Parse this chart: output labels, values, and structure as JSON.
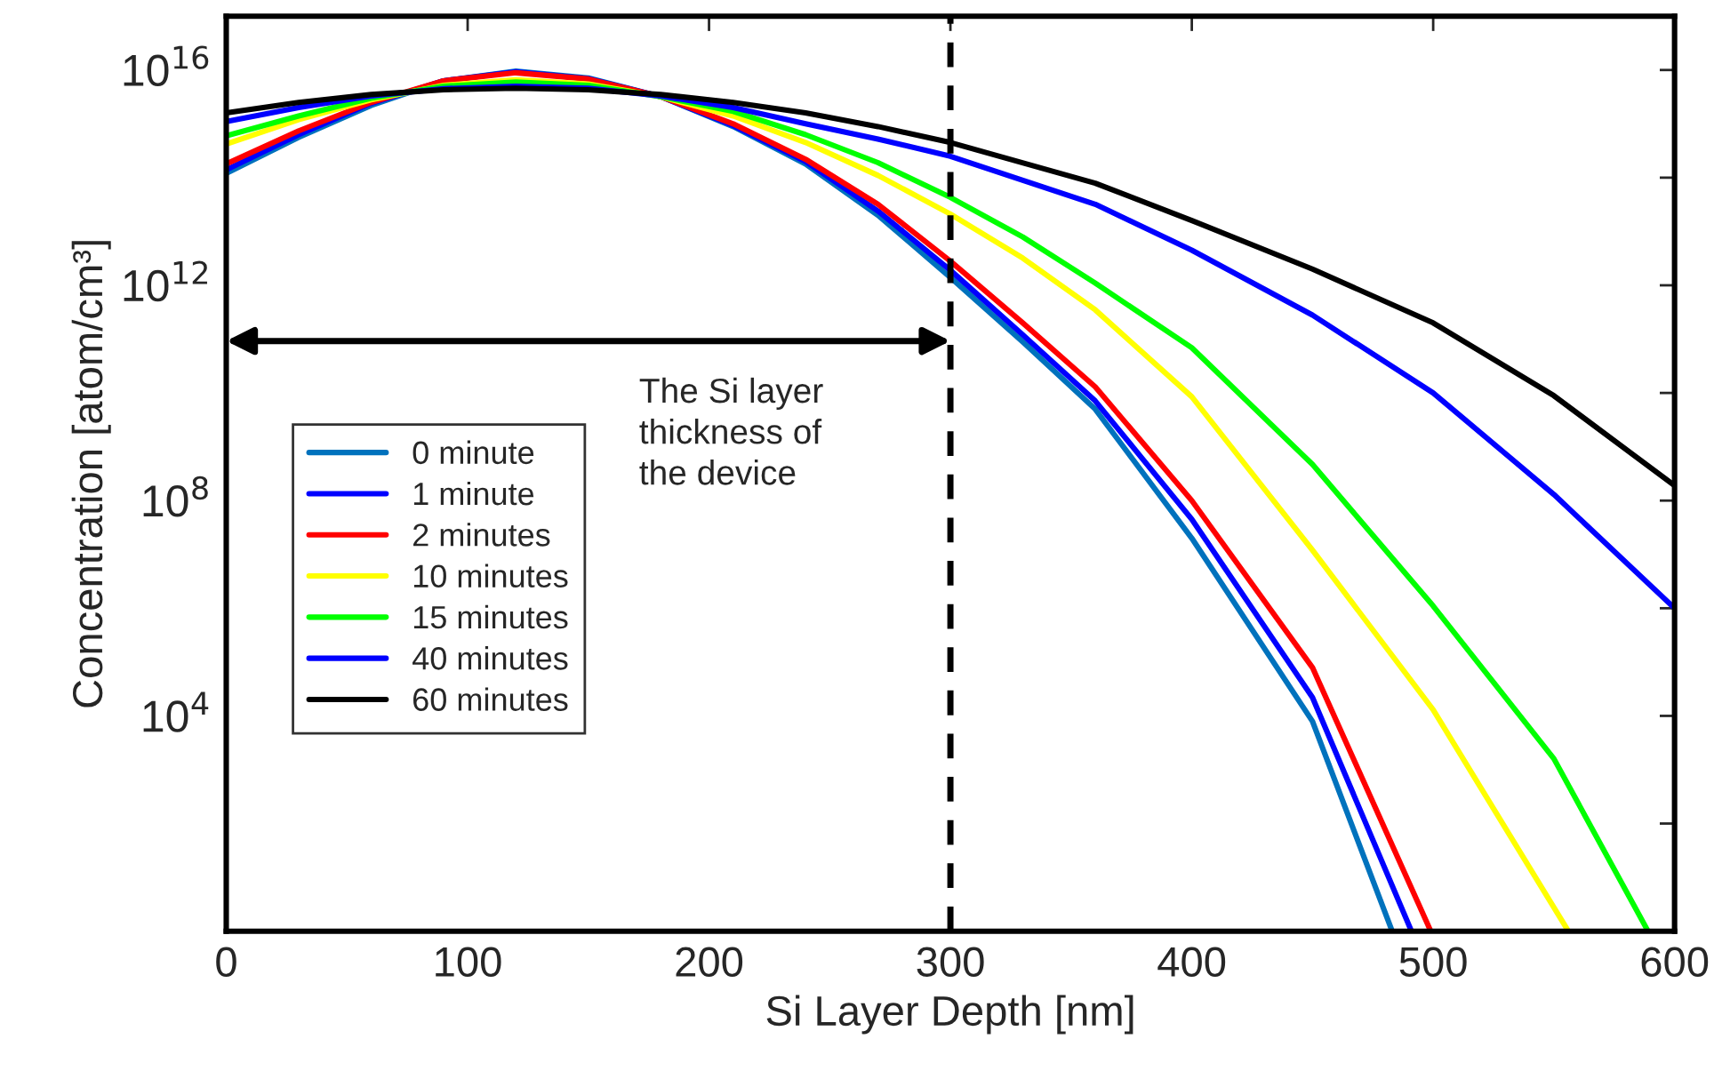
{
  "chart_data": {
    "type": "line",
    "xlabel": "Si Layer Depth [nm]",
    "ylabel": "Concentration [atom/cm³]",
    "log": "y",
    "xlim": [
      0,
      600
    ],
    "ylim": [
      1,
      1e+17
    ],
    "grid": false,
    "legend": "center left",
    "line_style": "solid",
    "marker": "none",
    "xticks": [
      0,
      100,
      200,
      300,
      400,
      500,
      600
    ],
    "yticks": [
      {
        "value": 1,
        "label": null
      },
      {
        "value": 100,
        "label": null
      },
      {
        "value": 10000,
        "label": "10$^{4}$"
      },
      {
        "value": 1000000.0,
        "label": null
      },
      {
        "value": 100000000.0,
        "label": "10$^{8}$"
      },
      {
        "value": 10000000000.0,
        "label": null
      },
      {
        "value": 1000000000000.0,
        "label": "10$^{12}$"
      },
      {
        "value": 100000000000000.0,
        "label": null
      },
      {
        "value": 1e+16,
        "label": "10$^{16}$"
      }
    ],
    "series": [
      {
        "name": "0 minute",
        "color": "#0072bd",
        "x": [
          0,
          30,
          60,
          90,
          120,
          150,
          180,
          210,
          240,
          270,
          300,
          330,
          360,
          400,
          450,
          483
        ],
        "values": [
          120000000000000.0,
          560000000000000.0,
          2200000000000000.0,
          6300000000000000.0,
          9500000000000000.0,
          7100000000000000.0,
          3200000000000000.0,
          890000000000000.0,
          180000000000000.0,
          20000000000000.0,
          1400000000000.0,
          89000000000.0,
          5000000000.0,
          20000000.0,
          7900.0,
          1
        ]
      },
      {
        "name": "1 minute",
        "color": "#0000ff",
        "x": [
          0,
          30,
          60,
          90,
          120,
          150,
          180,
          210,
          240,
          270,
          300,
          330,
          360,
          400,
          450,
          491
        ],
        "values": [
          140000000000000.0,
          630000000000000.0,
          2400000000000000.0,
          6300000000000000.0,
          9300000000000000.0,
          6900000000000000.0,
          3200000000000000.0,
          930000000000000.0,
          200000000000000.0,
          24000000000000.0,
          1900000000000.0,
          120000000000.0,
          7100000000.0,
          45000000.0,
          22000.0,
          1
        ]
      },
      {
        "name": "2 minutes",
        "color": "#ff0000",
        "x": [
          0,
          30,
          60,
          90,
          120,
          150,
          180,
          210,
          240,
          270,
          300,
          330,
          360,
          400,
          450,
          499
        ],
        "values": [
          180000000000000.0,
          740000000000000.0,
          2500000000000000.0,
          6300000000000000.0,
          8900000000000000.0,
          6800000000000000.0,
          3200000000000000.0,
          1000000000000000.0,
          220000000000000.0,
          32000000000000.0,
          2800000000000.0,
          200000000000.0,
          13000000000.0,
          100000000.0,
          79000.0,
          1
        ]
      },
      {
        "name": "10 minutes",
        "color": "#ffff00",
        "x": [
          0,
          30,
          60,
          90,
          120,
          150,
          180,
          210,
          240,
          270,
          300,
          330,
          360,
          400,
          450,
          500,
          556
        ],
        "values": [
          420000000000000.0,
          1200000000000000.0,
          2800000000000000.0,
          5200000000000000.0,
          6600000000000000.0,
          5500000000000000.0,
          3200000000000000.0,
          1400000000000000.0,
          450000000000000.0,
          110000000000000.0,
          21000000000000.0,
          3200000000000.0,
          350000000000.0,
          8500000000.0,
          12000000.0,
          13000.0,
          1
        ]
      },
      {
        "name": "15 minutes",
        "color": "#00ff00",
        "x": [
          0,
          30,
          60,
          90,
          120,
          150,
          180,
          210,
          240,
          270,
          300,
          330,
          360,
          400,
          450,
          500,
          550,
          589
        ],
        "values": [
          600000000000000.0,
          1400000000000000.0,
          3000000000000000.0,
          5000000000000000.0,
          6000000000000000.0,
          5200000000000000.0,
          3200000000000000.0,
          1700000000000000.0,
          630000000000000.0,
          190000000000000.0,
          43000000000000.0,
          7900000000000.0,
          1100000000000.0,
          69000000000.0,
          470000000.0,
          1100000.0,
          1600.0,
          1
        ]
      },
      {
        "name": "40 minutes",
        "color": "#0000ff",
        "x": [
          0,
          30,
          60,
          90,
          120,
          150,
          180,
          210,
          240,
          270,
          300,
          330,
          360,
          400,
          450,
          500,
          550,
          600
        ],
        "values": [
          1100000000000000.0,
          2000000000000000.0,
          3300000000000000.0,
          4500000000000000.0,
          5000000000000000.0,
          4600000000000000.0,
          3300000000000000.0,
          2000000000000000.0,
          1000000000000000.0,
          520000000000000.0,
          250000000000000.0,
          89000000000000.0,
          32000000000000.0,
          4500000000000.0,
          280000000000.0,
          10000000000.0,
          130000000.0,
          1000000.0
        ]
      },
      {
        "name": "60 minutes",
        "color": "#000000",
        "x": [
          0,
          30,
          60,
          90,
          120,
          150,
          180,
          210,
          240,
          270,
          300,
          360,
          400,
          450,
          500,
          550,
          600
        ],
        "values": [
          1600000000000000.0,
          2500000000000000.0,
          3500000000000000.0,
          4300000000000000.0,
          4600000000000000.0,
          4300000000000000.0,
          3500000000000000.0,
          2500000000000000.0,
          1600000000000000.0,
          890000000000000.0,
          450000000000000.0,
          79000000000000.0,
          16000000000000.0,
          2000000000000.0,
          200000000000.0,
          8900000000.0,
          190000000.0
        ]
      }
    ],
    "ref_lines": [
      {
        "axis": "x",
        "value": 300,
        "color": "#000000",
        "line_style": "dashed"
      }
    ],
    "annotations": [
      "The Si layer\nthickness of\nthe device"
    ]
  }
}
